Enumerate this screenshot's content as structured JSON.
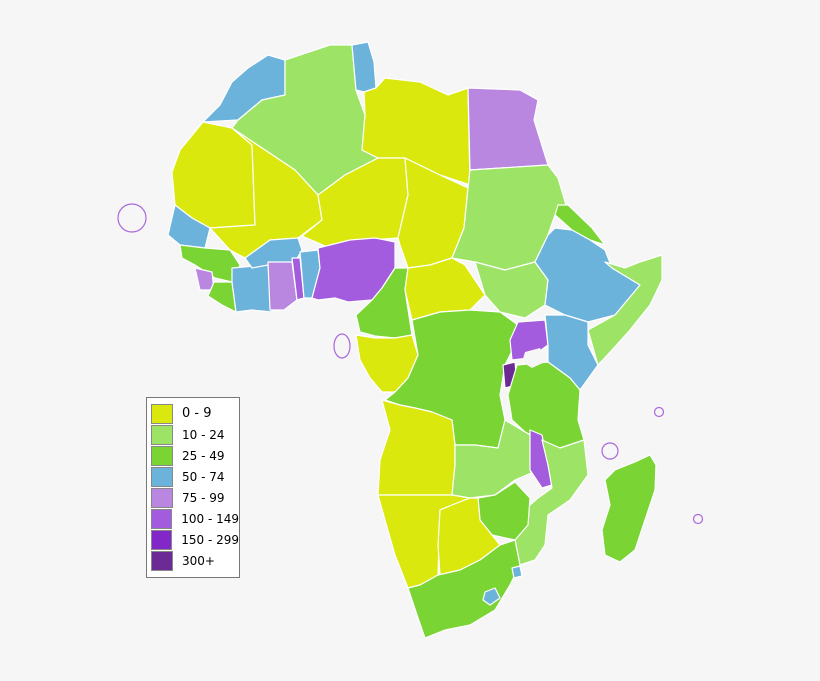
{
  "colors": {
    "c0_9": "#dbe80e",
    "c10_24": "#9de365",
    "c25_49": "#7ad434",
    "c50_74": "#6bb3db",
    "c75_99": "#b987e0",
    "c100_149": "#a35cdd",
    "c150_299": "#8328c8",
    "c300": "#6b2a94",
    "background": "#f6f6f6"
  },
  "legend": {
    "items": [
      {
        "label": "0 - 9",
        "color": "#dbe80e"
      },
      {
        "label": "10 - 24",
        "color": "#9de365"
      },
      {
        "label": "25 - 49",
        "color": "#7ad434"
      },
      {
        "label": "50 - 74",
        "color": "#6bb3db"
      },
      {
        "label": "75 - 99",
        "color": "#b987e0"
      },
      {
        "label": "100 - 149",
        "color": "#a35cdd"
      },
      {
        "label": "150 - 299",
        "color": "#8328c8"
      },
      {
        "label": "300+",
        "color": "#6b2a94"
      }
    ]
  }
}
